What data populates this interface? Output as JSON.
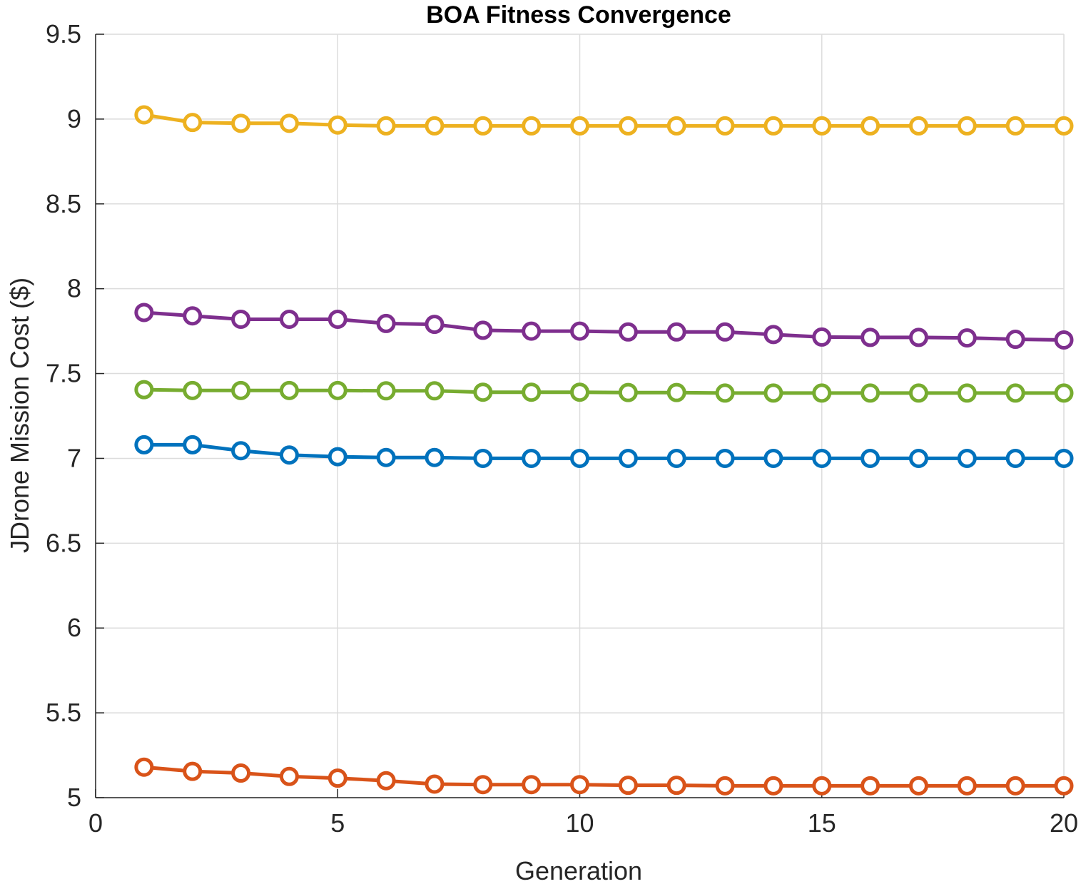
{
  "chart_data": {
    "type": "line",
    "title": "BOA Fitness Convergence",
    "xlabel": "Generation",
    "ylabel": "JDrone Mission Cost ($)",
    "xlim": [
      0,
      20
    ],
    "ylim": [
      5,
      9.5
    ],
    "xticks": [
      0,
      5,
      10,
      15,
      20
    ],
    "yticks": [
      5,
      5.5,
      6,
      6.5,
      7,
      7.5,
      8,
      8.5,
      9,
      9.5
    ],
    "grid": true,
    "marker": "circle",
    "x": [
      1,
      2,
      3,
      4,
      5,
      6,
      7,
      8,
      9,
      10,
      11,
      12,
      13,
      14,
      15,
      16,
      17,
      18,
      19,
      20
    ],
    "series": [
      {
        "color": "#0072BD",
        "values": [
          7.08,
          7.08,
          7.045,
          7.02,
          7.01,
          7.005,
          7.005,
          7.0,
          7.0,
          7.0,
          7.0,
          7.0,
          7.0,
          7.0,
          7.0,
          7.0,
          7.0,
          7.0,
          7.0,
          7.0
        ]
      },
      {
        "color": "#D95319",
        "values": [
          5.18,
          5.155,
          5.145,
          5.125,
          5.115,
          5.1,
          5.08,
          5.077,
          5.077,
          5.077,
          5.073,
          5.073,
          5.07,
          5.07,
          5.07,
          5.07,
          5.07,
          5.07,
          5.07,
          5.07
        ]
      },
      {
        "color": "#EDB120",
        "values": [
          9.025,
          8.98,
          8.975,
          8.975,
          8.965,
          8.96,
          8.96,
          8.96,
          8.96,
          8.96,
          8.96,
          8.96,
          8.96,
          8.96,
          8.96,
          8.96,
          8.96,
          8.96,
          8.96,
          8.96
        ]
      },
      {
        "color": "#7E2F8E",
        "values": [
          7.86,
          7.84,
          7.82,
          7.82,
          7.82,
          7.795,
          7.79,
          7.755,
          7.75,
          7.75,
          7.745,
          7.745,
          7.745,
          7.73,
          7.715,
          7.713,
          7.713,
          7.71,
          7.702,
          7.698
        ]
      },
      {
        "color": "#77AC30",
        "values": [
          7.405,
          7.4,
          7.4,
          7.4,
          7.4,
          7.398,
          7.398,
          7.39,
          7.39,
          7.39,
          7.388,
          7.388,
          7.385,
          7.385,
          7.385,
          7.385,
          7.385,
          7.385,
          7.385,
          7.385
        ]
      }
    ]
  }
}
